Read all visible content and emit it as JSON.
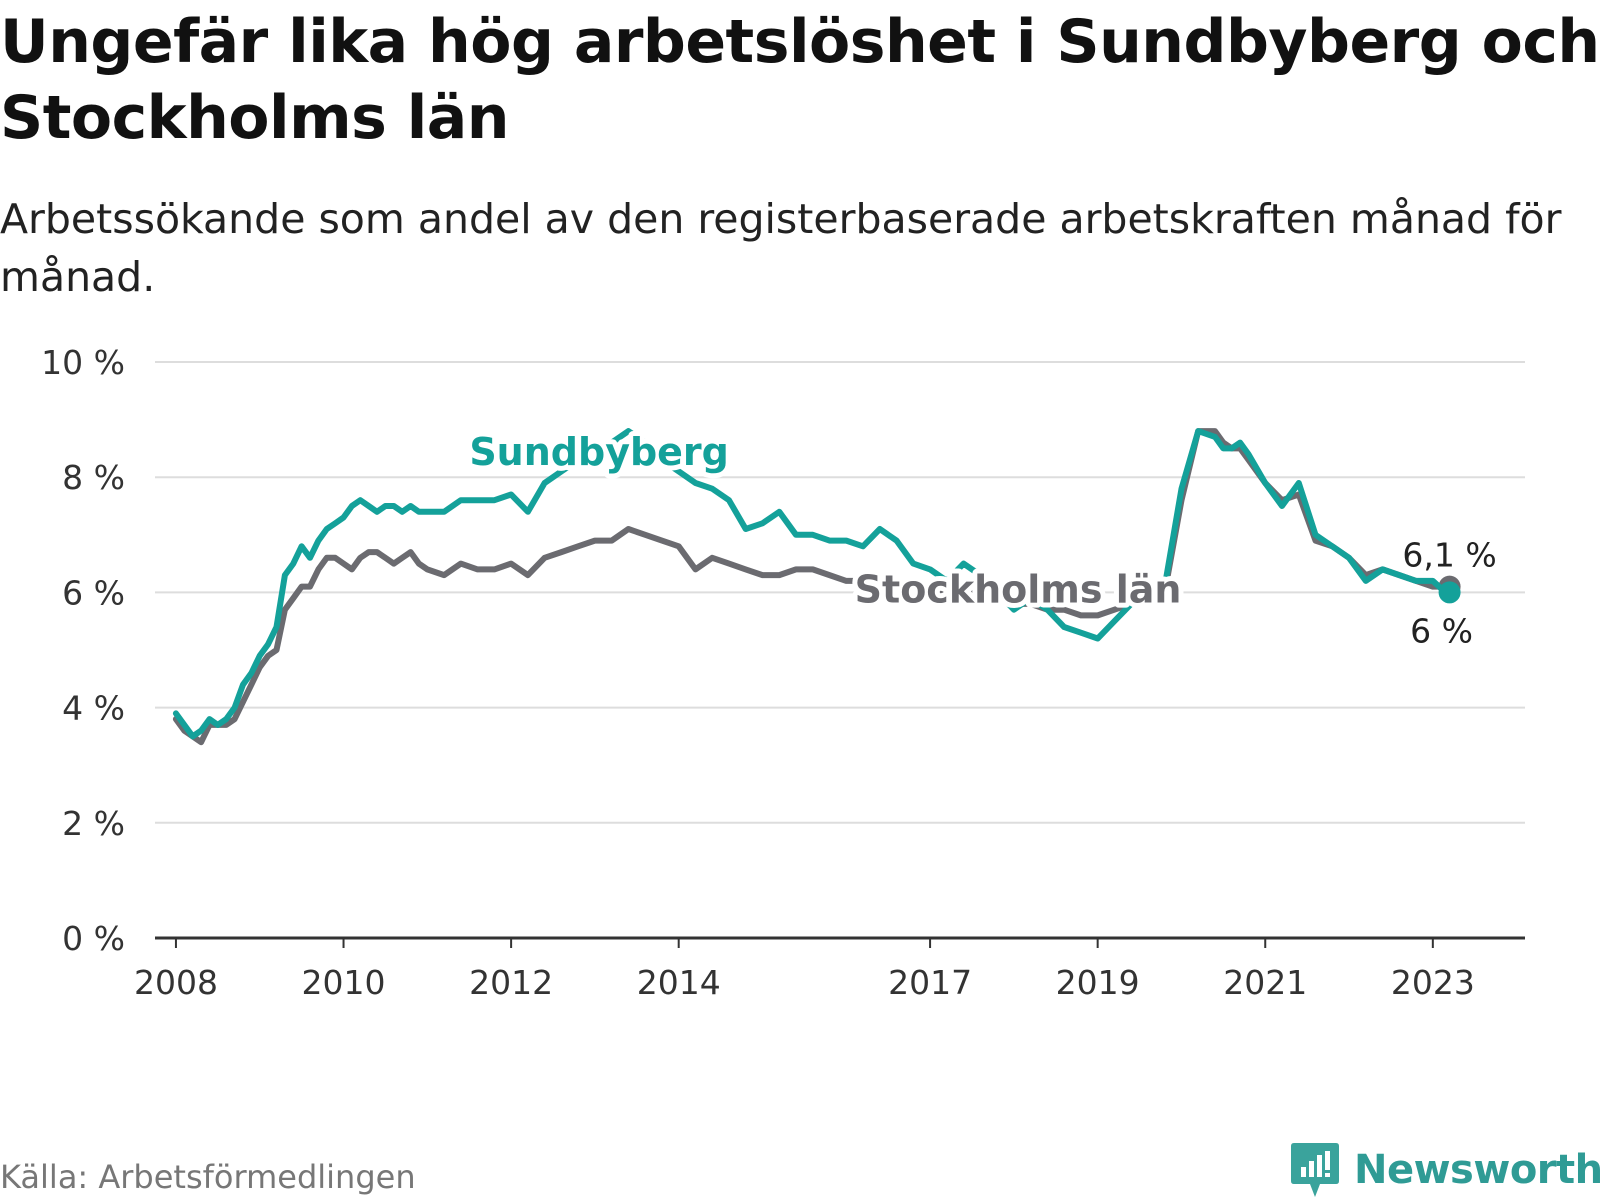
{
  "title": "Ungefär lika hög arbetslöshet i Sundbyberg och Stockholms län",
  "subtitle": "Arbetssökande som andel av den registerbaserade arbetskraften månad för månad.",
  "source": "Källa: Arbetsförmedlingen",
  "logo": {
    "name": "Newsworthy"
  },
  "colors": {
    "sundbyberg": "#14a19a",
    "stockholm": "#6b6b70",
    "grid": "#dddddd",
    "axis": "#333333"
  },
  "chart_data": {
    "type": "line",
    "title": "Ungefär lika hög arbetslöshet i Sundbyberg och Stockholms län",
    "xlabel": "",
    "ylabel": "",
    "xlim": [
      2007.75,
      2024.1
    ],
    "ylim": [
      0,
      10
    ],
    "y_ticks": [
      0,
      2,
      4,
      6,
      8,
      10
    ],
    "y_tick_labels": [
      "0 %",
      "2 %",
      "4 %",
      "6 %",
      "8 %",
      "10 %"
    ],
    "x_ticks": [
      2008,
      2010,
      2012,
      2014,
      2017,
      2019,
      2021,
      2023
    ],
    "x_tick_labels": [
      "2008",
      "2010",
      "2012",
      "2014",
      "2017",
      "2019",
      "2021",
      "2023"
    ],
    "grid": true,
    "series": [
      {
        "name": "Sundbyberg",
        "label": "Sundbyberg",
        "end_label": "6 %",
        "x": [
          2008.0,
          2008.1,
          2008.2,
          2008.3,
          2008.4,
          2008.5,
          2008.6,
          2008.7,
          2008.8,
          2008.9,
          2009.0,
          2009.1,
          2009.2,
          2009.3,
          2009.4,
          2009.5,
          2009.6,
          2009.7,
          2009.8,
          2009.9,
          2010.0,
          2010.1,
          2010.2,
          2010.3,
          2010.4,
          2010.5,
          2010.6,
          2010.7,
          2010.8,
          2010.9,
          2011.0,
          2011.2,
          2011.4,
          2011.6,
          2011.8,
          2012.0,
          2012.2,
          2012.4,
          2012.6,
          2012.8,
          2013.0,
          2013.2,
          2013.4,
          2013.6,
          2013.8,
          2014.0,
          2014.2,
          2014.4,
          2014.6,
          2014.8,
          2015.0,
          2015.2,
          2015.4,
          2015.6,
          2015.8,
          2016.0,
          2016.2,
          2016.4,
          2016.6,
          2016.8,
          2017.0,
          2017.2,
          2017.4,
          2017.6,
          2017.8,
          2018.0,
          2018.2,
          2018.4,
          2018.6,
          2018.8,
          2019.0,
          2019.2,
          2019.4,
          2019.6,
          2019.8,
          2020.0,
          2020.2,
          2020.4,
          2020.5,
          2020.6,
          2020.7,
          2020.8,
          2021.0,
          2021.2,
          2021.4,
          2021.6,
          2021.8,
          2022.0,
          2022.2,
          2022.4,
          2022.6,
          2022.8,
          2023.0,
          2023.15,
          2023.2
        ],
        "values": [
          3.9,
          3.7,
          3.5,
          3.6,
          3.8,
          3.7,
          3.8,
          4.0,
          4.4,
          4.6,
          4.9,
          5.1,
          5.4,
          6.3,
          6.5,
          6.8,
          6.6,
          6.9,
          7.1,
          7.2,
          7.3,
          7.5,
          7.6,
          7.5,
          7.4,
          7.5,
          7.5,
          7.4,
          7.5,
          7.4,
          7.4,
          7.4,
          7.6,
          7.6,
          7.6,
          7.7,
          7.4,
          7.9,
          8.1,
          8.3,
          8.4,
          8.6,
          8.8,
          8.6,
          8.3,
          8.1,
          7.9,
          7.8,
          7.6,
          7.1,
          7.2,
          7.4,
          7.0,
          7.0,
          6.9,
          6.9,
          6.8,
          7.1,
          6.9,
          6.5,
          6.4,
          6.2,
          6.5,
          6.3,
          6.0,
          5.7,
          5.9,
          5.7,
          5.4,
          5.3,
          5.2,
          5.5,
          5.8,
          6.0,
          6.1,
          7.8,
          8.8,
          8.7,
          8.5,
          8.5,
          8.6,
          8.4,
          7.9,
          7.5,
          7.9,
          7.0,
          6.8,
          6.6,
          6.2,
          6.4,
          6.3,
          6.2,
          6.2,
          6.0,
          6.0
        ]
      },
      {
        "name": "Stockholms län",
        "label": "Stockholms län",
        "end_label": "6,1 %",
        "x": [
          2008.0,
          2008.1,
          2008.2,
          2008.3,
          2008.4,
          2008.5,
          2008.6,
          2008.7,
          2008.8,
          2008.9,
          2009.0,
          2009.1,
          2009.2,
          2009.3,
          2009.4,
          2009.5,
          2009.6,
          2009.7,
          2009.8,
          2009.9,
          2010.0,
          2010.1,
          2010.2,
          2010.3,
          2010.4,
          2010.5,
          2010.6,
          2010.7,
          2010.8,
          2010.9,
          2011.0,
          2011.2,
          2011.4,
          2011.6,
          2011.8,
          2012.0,
          2012.2,
          2012.4,
          2012.6,
          2012.8,
          2013.0,
          2013.2,
          2013.4,
          2013.6,
          2013.8,
          2014.0,
          2014.2,
          2014.4,
          2014.6,
          2014.8,
          2015.0,
          2015.2,
          2015.4,
          2015.6,
          2015.8,
          2016.0,
          2016.2,
          2016.4,
          2016.6,
          2016.8,
          2017.0,
          2017.2,
          2017.4,
          2017.6,
          2017.8,
          2018.0,
          2018.2,
          2018.4,
          2018.6,
          2018.8,
          2019.0,
          2019.2,
          2019.4,
          2019.6,
          2019.8,
          2020.0,
          2020.2,
          2020.4,
          2020.5,
          2020.6,
          2020.7,
          2020.8,
          2021.0,
          2021.2,
          2021.4,
          2021.6,
          2021.8,
          2022.0,
          2022.2,
          2022.4,
          2022.6,
          2022.8,
          2023.0,
          2023.15,
          2023.2
        ],
        "values": [
          3.8,
          3.6,
          3.5,
          3.4,
          3.7,
          3.7,
          3.7,
          3.8,
          4.1,
          4.4,
          4.7,
          4.9,
          5.0,
          5.7,
          5.9,
          6.1,
          6.1,
          6.4,
          6.6,
          6.6,
          6.5,
          6.4,
          6.6,
          6.7,
          6.7,
          6.6,
          6.5,
          6.6,
          6.7,
          6.5,
          6.4,
          6.3,
          6.5,
          6.4,
          6.4,
          6.5,
          6.3,
          6.6,
          6.7,
          6.8,
          6.9,
          6.9,
          7.1,
          7.0,
          6.9,
          6.8,
          6.4,
          6.6,
          6.5,
          6.4,
          6.3,
          6.3,
          6.4,
          6.4,
          6.3,
          6.2,
          6.2,
          6.1,
          6.1,
          6.1,
          6.0,
          6.0,
          6.0,
          6.0,
          5.9,
          5.8,
          5.8,
          5.7,
          5.7,
          5.6,
          5.6,
          5.7,
          5.8,
          5.9,
          6.0,
          7.6,
          8.8,
          8.8,
          8.6,
          8.5,
          8.5,
          8.3,
          7.9,
          7.6,
          7.7,
          6.9,
          6.8,
          6.6,
          6.3,
          6.4,
          6.3,
          6.2,
          6.1,
          6.1,
          6.1
        ]
      }
    ]
  }
}
